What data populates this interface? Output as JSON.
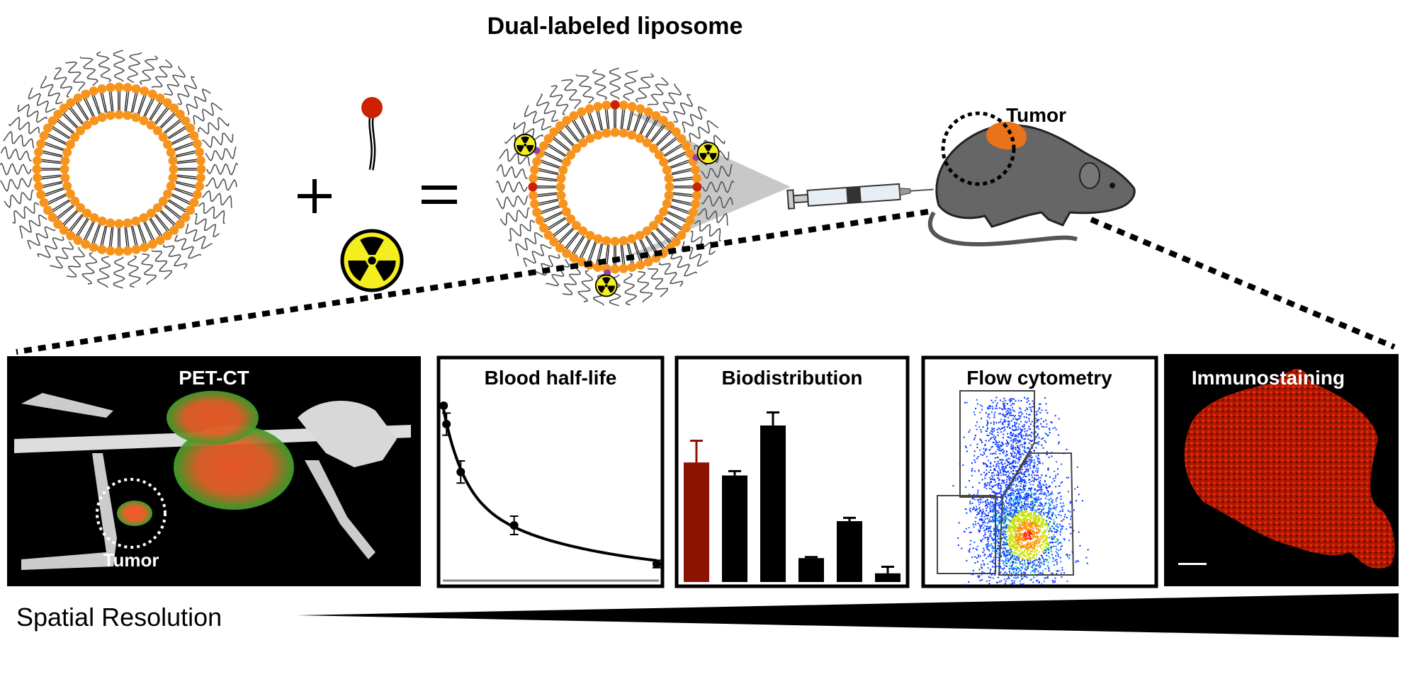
{
  "title": "Dual-labeled liposome",
  "tumor_label_top": "Tumor",
  "panels": {
    "pet_ct": {
      "title": "PET-CT",
      "tumor_label": "Tumor"
    },
    "blood": {
      "title": "Blood half-life"
    },
    "biodistribution": {
      "title": "Biodistribution"
    },
    "flow": {
      "title": "Flow cytometry"
    },
    "immuno": {
      "title": "Immunostaining"
    }
  },
  "spatial_resolution_label": "Spatial Resolution",
  "colors": {
    "lipid_head": "#f7941d",
    "label_head": "#cc2200",
    "linker": "#8e44ad",
    "radiation": "#f5ee1e",
    "bio_highlight": "#8b1400",
    "mouse": "#666666",
    "tumor": "#e8731a"
  },
  "chart_data": [
    {
      "type": "line",
      "title": "Blood half-life",
      "xlabel": "",
      "ylabel": "",
      "x": [
        0.04,
        0.17,
        0.83,
        3.3,
        9.9
      ],
      "y": [
        95,
        85,
        59,
        30,
        9
      ],
      "yerr": [
        0,
        6,
        6,
        5,
        2
      ],
      "xlim": [
        0,
        10
      ],
      "ylim": [
        0,
        100
      ],
      "grid": false
    },
    {
      "type": "bar",
      "title": "Biodistribution",
      "values": [
        55,
        49,
        72,
        11,
        28,
        4
      ],
      "errors": [
        10,
        2,
        6,
        0.5,
        1.5,
        3
      ],
      "colors": [
        "#8b1400",
        "#000000",
        "#000000",
        "#000000",
        "#000000",
        "#000000"
      ],
      "ylim": [
        0,
        100
      ],
      "grid": false
    }
  ]
}
